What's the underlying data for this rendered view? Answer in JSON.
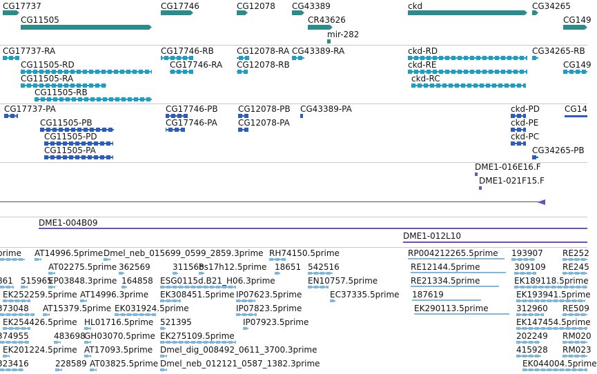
{
  "colors": {
    "gene": "#2b8c8c",
    "mrna": "#1aa0c8",
    "protein": "#2a5cc8",
    "clone": "#7050b8",
    "est": "#7fb6dc",
    "separator": "#c8c8c8",
    "line": "#555555"
  },
  "tracks": {
    "genes": {
      "features": [
        {
          "label": "CG17737"
        },
        {
          "label": "CG11505"
        },
        {
          "label": "CG17746"
        },
        {
          "label": "CG12078"
        },
        {
          "label": "CG43389"
        },
        {
          "label": "CR43626"
        },
        {
          "label": "mir-282"
        },
        {
          "label": "ckd"
        },
        {
          "label": "CG34265"
        },
        {
          "label": "CG149"
        }
      ]
    },
    "transcripts": {
      "features": [
        {
          "label": "CG17737-RA"
        },
        {
          "label": "CG11505-RD"
        },
        {
          "label": "CG11505-RA"
        },
        {
          "label": "CG11505-RB"
        },
        {
          "label": "CG17746-RB"
        },
        {
          "label": "CG17746-RA"
        },
        {
          "label": "CG12078-RA"
        },
        {
          "label": "CG12078-RB"
        },
        {
          "label": "CG43389-RA"
        },
        {
          "label": "ckd-RD"
        },
        {
          "label": "ckd-RE"
        },
        {
          "label": "ckd-RC"
        },
        {
          "label": "CG34265-RB"
        },
        {
          "label": "CG149"
        }
      ]
    },
    "proteins": {
      "features": [
        {
          "label": "CG17737-PA"
        },
        {
          "label": "CG11505-PB"
        },
        {
          "label": "CG11505-PD"
        },
        {
          "label": "CG11505-PA"
        },
        {
          "label": "CG17746-PB"
        },
        {
          "label": "CG17746-PA"
        },
        {
          "label": "CG12078-PB"
        },
        {
          "label": "CG12078-PA"
        },
        {
          "label": "CG43389-PA"
        },
        {
          "label": "ckd-PD"
        },
        {
          "label": "ckd-PE"
        },
        {
          "label": "ckd-PC"
        },
        {
          "label": "CG14"
        },
        {
          "label": "CG34265-PB"
        }
      ]
    },
    "bac_clones": {
      "features": [
        {
          "label": "DME1-016E16.F"
        },
        {
          "label": "DME1-021F15.F"
        }
      ]
    },
    "bac_tiling": {
      "features": [
        {
          "label": "DME1-004B09"
        },
        {
          "label": "DME1-012L10"
        }
      ]
    },
    "est": {
      "features": [
        {
          "label": "prime"
        },
        {
          "label": "AT14996.5prime"
        },
        {
          "label": "Dmel_neb_015699_0599_2859.3prime"
        },
        {
          "label": "RH74150.5prime"
        },
        {
          "label": "RP004212265.5prime"
        },
        {
          "label": "193907"
        },
        {
          "label": "RE252"
        },
        {
          "label": "AT02275.5prime"
        },
        {
          "label": "362569"
        },
        {
          "label": "311568"
        },
        {
          "label": "bs17h12.5prime"
        },
        {
          "label": "18651"
        },
        {
          "label": "542516"
        },
        {
          "label": "RE12144.5prime"
        },
        {
          "label": "309109"
        },
        {
          "label": "RE245"
        },
        {
          "label": "861"
        },
        {
          "label": "515965"
        },
        {
          "label": "EP03848.3prime"
        },
        {
          "label": "164858"
        },
        {
          "label": "ESG0115d.B21_H06.3prime"
        },
        {
          "label": "EN10757.5prime"
        },
        {
          "label": "RE21334.5prime"
        },
        {
          "label": "EK189118.5prime"
        },
        {
          "label": "EK252259.5prime"
        },
        {
          "label": "AT14996.3prime"
        },
        {
          "label": "EK308451.5prime"
        },
        {
          "label": "IP07623.5prime"
        },
        {
          "label": "EC37335.5prime"
        },
        {
          "label": "187619"
        },
        {
          "label": "EK193941.5prime"
        },
        {
          "label": "373048"
        },
        {
          "label": "AT15379.5prime"
        },
        {
          "label": "EK031924.5prime"
        },
        {
          "label": "IP07823.5prime"
        },
        {
          "label": "EK290113.5prime"
        },
        {
          "label": "312960"
        },
        {
          "label": "RE509"
        },
        {
          "label": "EK254426.5prime"
        },
        {
          "label": "HL01716.5prime"
        },
        {
          "label": "521395"
        },
        {
          "label": "IP07923.5prime"
        },
        {
          "label": "EK147454.5prime"
        },
        {
          "label": "374955"
        },
        {
          "label": "483698"
        },
        {
          "label": "GH03070.5prime"
        },
        {
          "label": "EK275109.5prime"
        },
        {
          "label": "202249"
        },
        {
          "label": "RM020"
        },
        {
          "label": "EK201224.5prime"
        },
        {
          "label": "AT17093.5prime"
        },
        {
          "label": "Dmel_dig_008492_0611_3700.3prime"
        },
        {
          "label": "415928"
        },
        {
          "label": "RM023"
        },
        {
          "label": "323416"
        },
        {
          "label": "228589"
        },
        {
          "label": "AT03825.5prime"
        },
        {
          "label": "Dmel_neb_012121_0587_1382.3prime"
        },
        {
          "label": "EK044004.5prime"
        }
      ]
    }
  }
}
